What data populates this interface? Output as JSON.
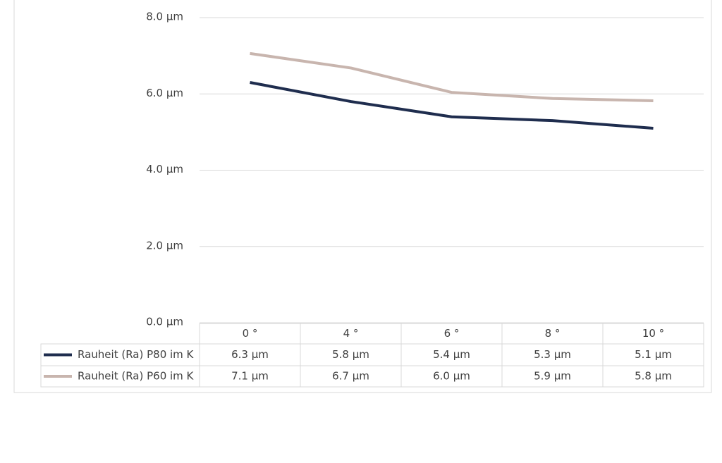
{
  "chart_data": {
    "type": "line",
    "categories": [
      "0 °",
      "4 °",
      "6 °",
      "8 °",
      "10 °"
    ],
    "series": [
      {
        "name": "Rauheit (Ra) P80 im K",
        "color": "#1f2d4e",
        "values": [
          6.3,
          5.8,
          5.4,
          5.3,
          5.1
        ],
        "value_labels": [
          "6.3 µm",
          "5.8 µm",
          "5.4 µm",
          "5.3 µm",
          "5.1 µm"
        ]
      },
      {
        "name": "Rauheit (Ra) P60 im K",
        "color": "#c8b5ae",
        "values": [
          7.06,
          6.68,
          6.04,
          5.88,
          5.82
        ],
        "value_labels": [
          "7.1 µm",
          "6.7 µm",
          "6.0 µm",
          "5.9 µm",
          "5.8 µm"
        ]
      }
    ],
    "ylim": [
      0,
      8
    ],
    "yticks": [
      {
        "value": 0,
        "label": "0.0 µm"
      },
      {
        "value": 2,
        "label": "2.0 µm"
      },
      {
        "value": 4,
        "label": "4.0 µm"
      },
      {
        "value": 6,
        "label": "6.0 µm"
      },
      {
        "value": 8,
        "label": "8.0 µm"
      }
    ],
    "grid": true,
    "data_table": true
  }
}
